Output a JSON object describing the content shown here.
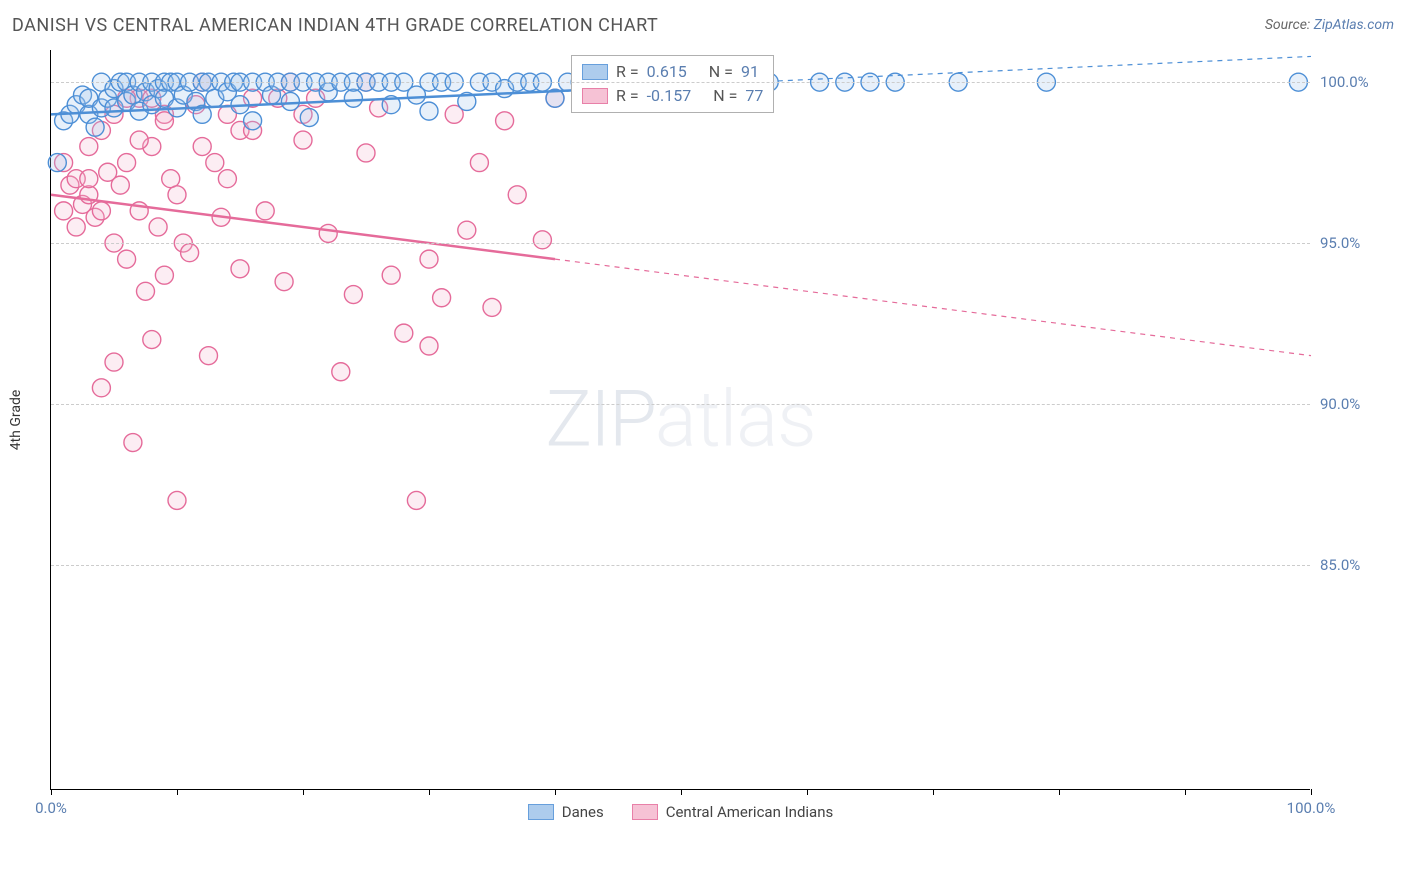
{
  "header": {
    "title": "DANISH VS CENTRAL AMERICAN INDIAN 4TH GRADE CORRELATION CHART",
    "source_prefix": "Source: ",
    "source_link": "ZipAtlas.com"
  },
  "chart": {
    "type": "scatter",
    "ylabel": "4th Grade",
    "xlim": [
      0,
      100
    ],
    "ylim": [
      78,
      101
    ],
    "xticks": [
      0,
      10,
      20,
      30,
      40,
      50,
      60,
      70,
      80,
      90,
      100
    ],
    "xtick_labels_shown": {
      "0": "0.0%",
      "100": "100.0%"
    },
    "yticks": [
      85,
      90,
      95,
      100
    ],
    "ytick_labels": [
      "85.0%",
      "90.0%",
      "95.0%",
      "100.0%"
    ],
    "grid_color": "#cccccc",
    "background_color": "#ffffff",
    "axis_color": "#000000",
    "label_color": "#5a7eb0",
    "marker_radius": 9,
    "marker_fill_opacity": 0.25,
    "marker_stroke_width": 1.4,
    "trend_line_width": 2.5,
    "watermark": {
      "strong": "ZIP",
      "light": "atlas",
      "fontsize": 78
    }
  },
  "series": {
    "danes": {
      "label": "Danes",
      "color_stroke": "#4d8fd6",
      "color_fill": "#9fc4ea",
      "R": 0.615,
      "N": 91,
      "trend": {
        "x1": 0,
        "y1": 99.0,
        "x2": 100,
        "y2": 100.8,
        "solid_until_x": 45
      },
      "points": [
        [
          1,
          98.8
        ],
        [
          1.5,
          99.0
        ],
        [
          2,
          99.3
        ],
        [
          2.5,
          99.6
        ],
        [
          3,
          99.0
        ],
        [
          3,
          99.5
        ],
        [
          3.5,
          98.6
        ],
        [
          4,
          99.2
        ],
        [
          4,
          100.0
        ],
        [
          4.5,
          99.5
        ],
        [
          5,
          99.8
        ],
        [
          5,
          99.2
        ],
        [
          5.5,
          100.0
        ],
        [
          6,
          99.4
        ],
        [
          6,
          100.0
        ],
        [
          6.5,
          99.6
        ],
        [
          7,
          99.1
        ],
        [
          7,
          100.0
        ],
        [
          7.5,
          99.7
        ],
        [
          8,
          99.3
        ],
        [
          8,
          100.0
        ],
        [
          8.5,
          99.8
        ],
        [
          9,
          99.5
        ],
        [
          9,
          100.0
        ],
        [
          9.5,
          100.0
        ],
        [
          10,
          99.2
        ],
        [
          10,
          100.0
        ],
        [
          10.5,
          99.6
        ],
        [
          11,
          100.0
        ],
        [
          11.5,
          99.4
        ],
        [
          12,
          99.0
        ],
        [
          12,
          100.0
        ],
        [
          12.5,
          100.0
        ],
        [
          13,
          99.5
        ],
        [
          13.5,
          100.0
        ],
        [
          14,
          99.7
        ],
        [
          14.5,
          100.0
        ],
        [
          15,
          99.3
        ],
        [
          15,
          100.0
        ],
        [
          16,
          98.8
        ],
        [
          16,
          100.0
        ],
        [
          17,
          100.0
        ],
        [
          17.5,
          99.6
        ],
        [
          18,
          100.0
        ],
        [
          19,
          99.4
        ],
        [
          19,
          100.0
        ],
        [
          20,
          100.0
        ],
        [
          20.5,
          98.9
        ],
        [
          21,
          100.0
        ],
        [
          22,
          99.7
        ],
        [
          22,
          100.0
        ],
        [
          23,
          100.0
        ],
        [
          24,
          99.5
        ],
        [
          24,
          100.0
        ],
        [
          25,
          100.0
        ],
        [
          26,
          100.0
        ],
        [
          27,
          99.3
        ],
        [
          27,
          100.0
        ],
        [
          28,
          100.0
        ],
        [
          29,
          99.6
        ],
        [
          30,
          99.1
        ],
        [
          30,
          100.0
        ],
        [
          31,
          100.0
        ],
        [
          32,
          100.0
        ],
        [
          33,
          99.4
        ],
        [
          34,
          100.0
        ],
        [
          35,
          100.0
        ],
        [
          36,
          99.8
        ],
        [
          37,
          100.0
        ],
        [
          38,
          100.0
        ],
        [
          39,
          100.0
        ],
        [
          40,
          99.5
        ],
        [
          41,
          100.0
        ],
        [
          42,
          100.0
        ],
        [
          43,
          100.0
        ],
        [
          44,
          100.0
        ],
        [
          45,
          100.0
        ],
        [
          46,
          100.0
        ],
        [
          47,
          100.0
        ],
        [
          48,
          99.7
        ],
        [
          50,
          100.0
        ],
        [
          52,
          100.0
        ],
        [
          57,
          100.0
        ],
        [
          61,
          100.0
        ],
        [
          63,
          100.0
        ],
        [
          65,
          100.0
        ],
        [
          67,
          100.0
        ],
        [
          72,
          100.0
        ],
        [
          79,
          100.0
        ],
        [
          99,
          100.0
        ],
        [
          0.5,
          97.5
        ]
      ]
    },
    "cai": {
      "label": "Central American Indians",
      "color_stroke": "#e56b9a",
      "color_fill": "#f5b8ce",
      "R": -0.157,
      "N": 77,
      "trend": {
        "x1": 0,
        "y1": 96.5,
        "x2": 100,
        "y2": 91.5,
        "solid_until_x": 40
      },
      "points": [
        [
          1,
          96.0
        ],
        [
          1,
          97.5
        ],
        [
          1.5,
          96.8
        ],
        [
          2,
          95.5
        ],
        [
          2,
          97.0
        ],
        [
          2.5,
          96.2
        ],
        [
          3,
          96.5
        ],
        [
          3,
          98.0
        ],
        [
          3.5,
          95.8
        ],
        [
          4,
          90.5
        ],
        [
          4,
          96.0
        ],
        [
          4.5,
          97.2
        ],
        [
          5,
          91.3
        ],
        [
          5,
          95.0
        ],
        [
          5.5,
          96.8
        ],
        [
          6,
          94.5
        ],
        [
          6,
          97.5
        ],
        [
          6.5,
          88.8
        ],
        [
          7,
          99.5
        ],
        [
          7,
          96.0
        ],
        [
          7.5,
          93.5
        ],
        [
          8,
          92.0
        ],
        [
          8,
          98.0
        ],
        [
          8.5,
          95.5
        ],
        [
          9,
          99.0
        ],
        [
          9,
          94.0
        ],
        [
          9.5,
          97.0
        ],
        [
          10,
          96.5
        ],
        [
          10,
          87.0
        ],
        [
          10.5,
          95.0
        ],
        [
          11,
          94.7
        ],
        [
          11.5,
          99.3
        ],
        [
          12,
          100.0
        ],
        [
          12.5,
          91.5
        ],
        [
          13,
          97.5
        ],
        [
          13.5,
          95.8
        ],
        [
          14,
          99.0
        ],
        [
          15,
          94.2
        ],
        [
          15,
          98.5
        ],
        [
          16,
          99.5
        ],
        [
          17,
          96.0
        ],
        [
          18,
          99.5
        ],
        [
          18.5,
          93.8
        ],
        [
          19,
          100.0
        ],
        [
          20,
          98.2
        ],
        [
          21,
          99.5
        ],
        [
          22,
          95.3
        ],
        [
          23,
          91.0
        ],
        [
          24,
          93.4
        ],
        [
          25,
          100.0
        ],
        [
          25,
          97.8
        ],
        [
          26,
          99.2
        ],
        [
          27,
          94.0
        ],
        [
          28,
          92.2
        ],
        [
          29,
          87.0
        ],
        [
          30,
          91.8
        ],
        [
          30,
          94.5
        ],
        [
          31,
          93.3
        ],
        [
          32,
          99.0
        ],
        [
          33,
          95.4
        ],
        [
          34,
          97.5
        ],
        [
          35,
          93.0
        ],
        [
          36,
          98.8
        ],
        [
          37,
          96.5
        ],
        [
          39,
          95.1
        ],
        [
          40,
          99.5
        ],
        [
          3,
          97.0
        ],
        [
          4,
          98.5
        ],
        [
          5,
          99.0
        ],
        [
          6,
          99.5
        ],
        [
          7,
          98.2
        ],
        [
          8,
          99.5
        ],
        [
          9,
          98.8
        ],
        [
          12,
          98.0
        ],
        [
          14,
          97.0
        ],
        [
          16,
          98.5
        ],
        [
          20,
          99.0
        ]
      ]
    }
  },
  "legend_stats": {
    "danes": {
      "R_label": "R =",
      "R_val": "0.615",
      "N_label": "N =",
      "N_val": "91"
    },
    "cai": {
      "R_label": "R =",
      "R_val": "-0.157",
      "N_label": "N =",
      "N_val": "77"
    }
  },
  "legend_bottom": {
    "danes": "Danes",
    "cai": "Central American Indians"
  }
}
